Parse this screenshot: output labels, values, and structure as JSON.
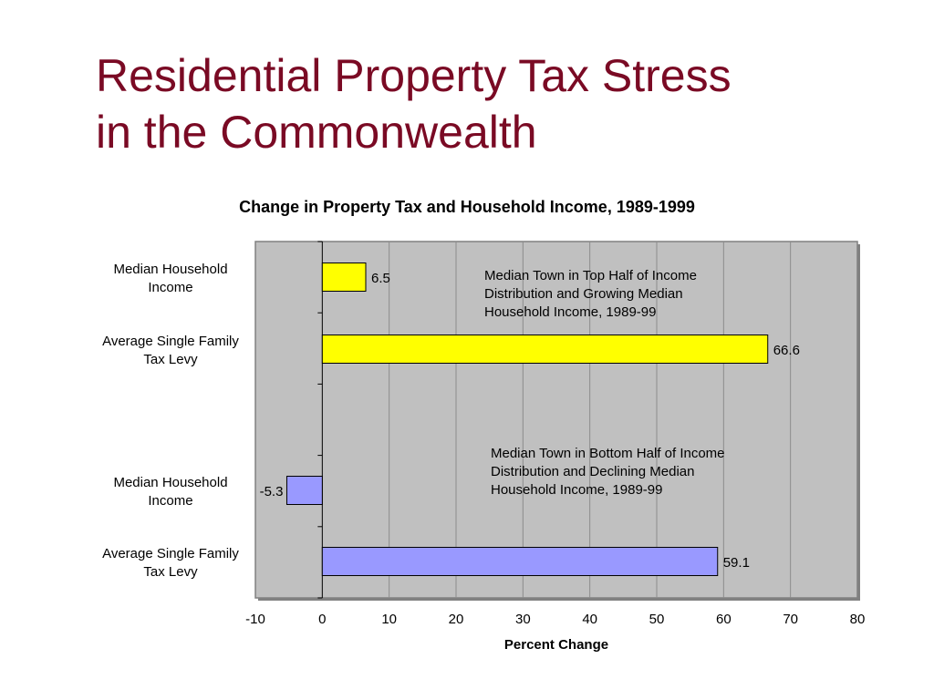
{
  "slide": {
    "title_line1": "Residential Property Tax Stress",
    "title_line2": "in the Commonwealth"
  },
  "colors": {
    "title": "#7a0a24",
    "plot_background": "#c0c0c0",
    "top_group_bar": "#ffff00",
    "bottom_group_bar": "#9999ff"
  },
  "chart_data": {
    "type": "bar",
    "orientation": "horizontal",
    "title": "Change in Property Tax and Household Income, 1989-1999",
    "xlabel": "Percent Change",
    "ylabel": "",
    "xlim": [
      -10,
      80
    ],
    "xticks": [
      "-10",
      "0",
      "10",
      "20",
      "30",
      "40",
      "50",
      "60",
      "70",
      "80"
    ],
    "grid": "vertical",
    "legend": "none",
    "categories": [
      "Median Household Income",
      "Average Single Family Tax Levy",
      "Median Household Income",
      "Average Single Family Tax Levy"
    ],
    "values": [
      6.5,
      66.6,
      -5.3,
      59.1
    ],
    "data_labels": [
      "6.5",
      "66.6",
      "-5.3",
      "59.1"
    ],
    "bar_colors": [
      "#ffff00",
      "#ffff00",
      "#9999ff",
      "#9999ff"
    ],
    "category_label_lines": [
      [
        "Median Household",
        "Income"
      ],
      [
        "Average Single Family",
        "Tax Levy"
      ],
      [
        "Median Household",
        "Income"
      ],
      [
        "Average Single Family",
        "Tax Levy"
      ]
    ],
    "annotations": [
      {
        "x": 25,
        "lines": [
          "Median Town in Top Half of Income",
          "Distribution and Growing Median",
          "Household Income, 1989-99"
        ]
      },
      {
        "x": 25,
        "lines": [
          "Median Town in Bottom Half of Income",
          "Distribution and Declining Median",
          "Household Income, 1989-99"
        ]
      }
    ]
  }
}
